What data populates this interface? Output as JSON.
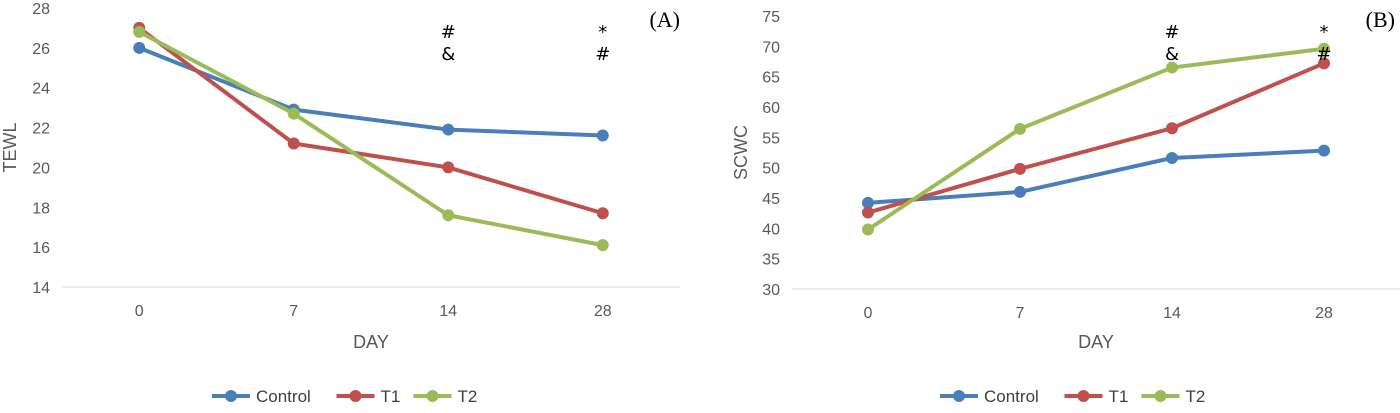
{
  "colors": {
    "Control": "#4a7ebb",
    "T1": "#c0504d",
    "T2": "#9bbb59",
    "axis": "#d9d9d9",
    "text": "#595959"
  },
  "chart_data": [
    {
      "type": "line",
      "panel_label": "(A)",
      "categories": [
        "0",
        "7",
        "14",
        "28"
      ],
      "xlabel": "DAY",
      "ylabel": "TEWL",
      "ylim": [
        14,
        28
      ],
      "ytick_step": 2,
      "grid": false,
      "legend_position": "bottom",
      "series": [
        {
          "name": "Control",
          "values": [
            26.0,
            22.9,
            21.9,
            21.6
          ]
        },
        {
          "name": "T1",
          "values": [
            27.0,
            21.2,
            20.0,
            17.7
          ]
        },
        {
          "name": "T2",
          "values": [
            26.8,
            22.7,
            17.6,
            16.1
          ]
        }
      ],
      "annotations": [
        {
          "category": "14",
          "lines": [
            "#",
            "&"
          ]
        },
        {
          "category": "28",
          "lines": [
            "*",
            "#"
          ]
        }
      ]
    },
    {
      "type": "line",
      "panel_label": "(B)",
      "categories": [
        "0",
        "7",
        "14",
        "28"
      ],
      "xlabel": "DAY",
      "ylabel": "SCWC",
      "ylim": [
        30,
        75
      ],
      "ytick_step": 5,
      "grid": false,
      "legend_position": "bottom",
      "series": [
        {
          "name": "Control",
          "values": [
            44.2,
            46.0,
            51.6,
            52.8
          ]
        },
        {
          "name": "T1",
          "values": [
            42.6,
            49.8,
            56.5,
            67.2
          ]
        },
        {
          "name": "T2",
          "values": [
            39.8,
            56.4,
            66.5,
            69.6
          ]
        }
      ],
      "annotations": [
        {
          "category": "14",
          "lines": [
            "#",
            "&"
          ]
        },
        {
          "category": "28",
          "lines": [
            "*",
            "#"
          ]
        }
      ]
    }
  ]
}
